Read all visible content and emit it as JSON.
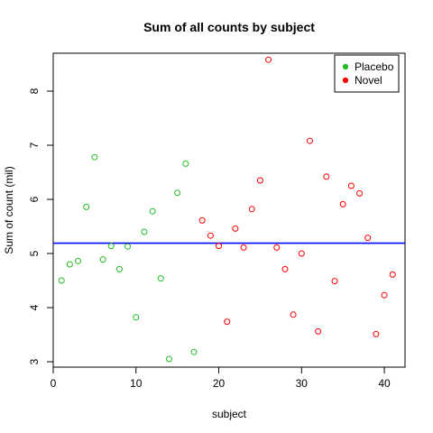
{
  "chart_data": {
    "type": "scatter",
    "title": "Sum of all counts by subject",
    "xlabel": "subject",
    "ylabel": "Sum of count (mil)",
    "xlim": [
      0,
      42.5
    ],
    "ylim": [
      2.9,
      8.7
    ],
    "xticks": [
      0,
      10,
      20,
      30,
      40
    ],
    "yticks": [
      3,
      4,
      5,
      6,
      7,
      8
    ],
    "grid": false,
    "legend_position": "top-right",
    "hline": {
      "y": 5.19,
      "color": "#0000ff"
    },
    "series": [
      {
        "name": "Placebo",
        "color": "#22bb22",
        "x": [
          1,
          2,
          3,
          4,
          5,
          6,
          7,
          8,
          9,
          10,
          11,
          12,
          13,
          14,
          15,
          16,
          17
        ],
        "y": [
          4.5,
          4.8,
          4.86,
          5.86,
          6.78,
          4.89,
          5.14,
          4.71,
          5.13,
          3.82,
          5.4,
          5.78,
          4.54,
          3.05,
          6.12,
          6.66,
          3.18
        ]
      },
      {
        "name": "Novel",
        "color": "#ff0000",
        "x": [
          18,
          19,
          20,
          21,
          22,
          23,
          24,
          25,
          26,
          27,
          28,
          29,
          30,
          31,
          32,
          33,
          34,
          35,
          36,
          37,
          38,
          39,
          40,
          41
        ],
        "y": [
          5.61,
          5.33,
          5.14,
          3.74,
          5.46,
          5.11,
          5.82,
          6.35,
          8.58,
          5.11,
          4.71,
          3.87,
          5.0,
          7.08,
          3.56,
          6.42,
          4.49,
          5.91,
          6.25,
          6.11,
          5.29,
          3.51,
          4.23,
          4.61
        ]
      }
    ]
  }
}
